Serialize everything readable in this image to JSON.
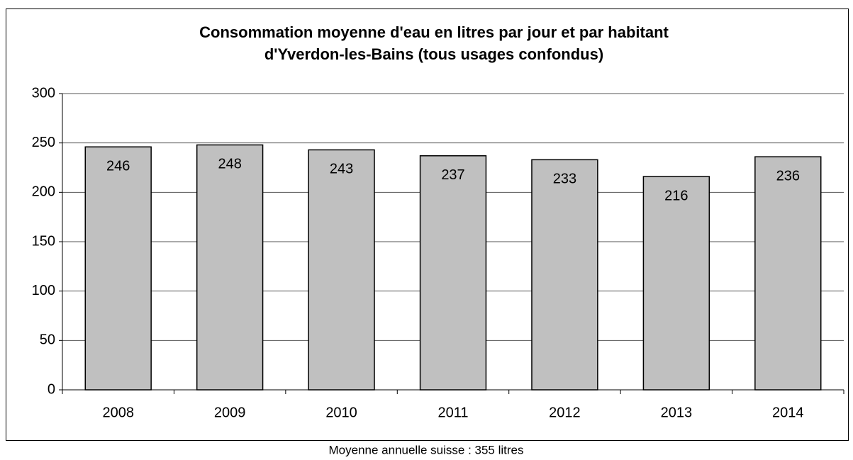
{
  "chart_data": {
    "type": "bar",
    "title": [
      "Consommation moyenne d'eau en litres par jour et par habitant",
      "d'Yverdon-les-Bains (tous usages confondus)"
    ],
    "categories": [
      "2008",
      "2009",
      "2010",
      "2011",
      "2012",
      "2013",
      "2014"
    ],
    "values": [
      246,
      248,
      243,
      237,
      233,
      216,
      236
    ],
    "color": "#c0c0c0",
    "ylim": [
      0,
      300
    ],
    "yticks": [
      0,
      50,
      100,
      150,
      200,
      250,
      300
    ],
    "grid": true,
    "caption": "Moyenne annuelle suisse : 355 litres"
  }
}
